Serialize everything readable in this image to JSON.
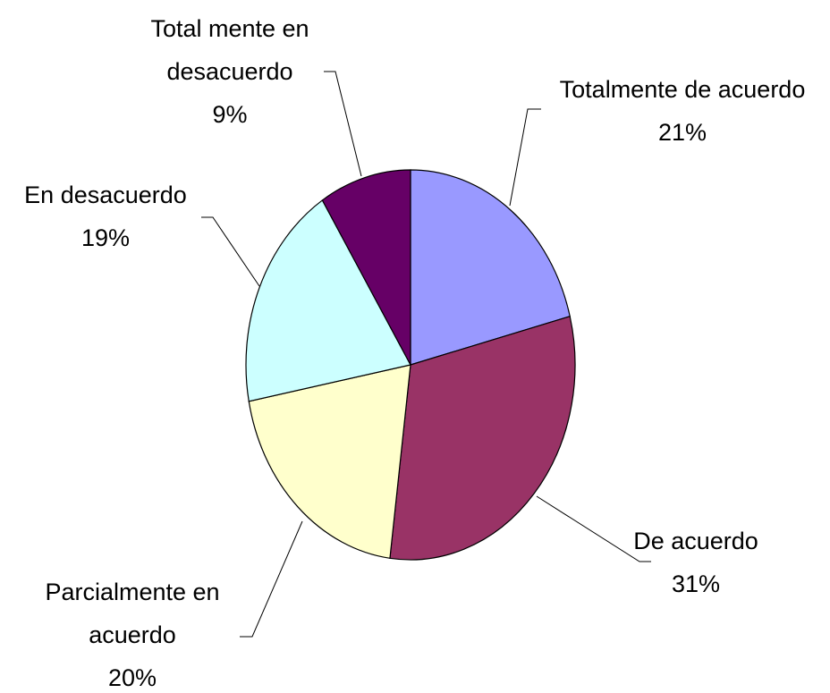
{
  "chart_data": {
    "type": "pie",
    "categories": [
      "Totalmente de acuerdo",
      "De acuerdo",
      "Parcialmente en acuerdo",
      "En desacuerdo",
      "Total mente en desacuerdo"
    ],
    "values": [
      21,
      31,
      20,
      19,
      9
    ],
    "value_labels": [
      "21%",
      "31%",
      "20%",
      "19%",
      "9%"
    ],
    "colors": [
      "#9999ff",
      "#993366",
      "#ffffcc",
      "#ccffff",
      "#660066"
    ]
  }
}
